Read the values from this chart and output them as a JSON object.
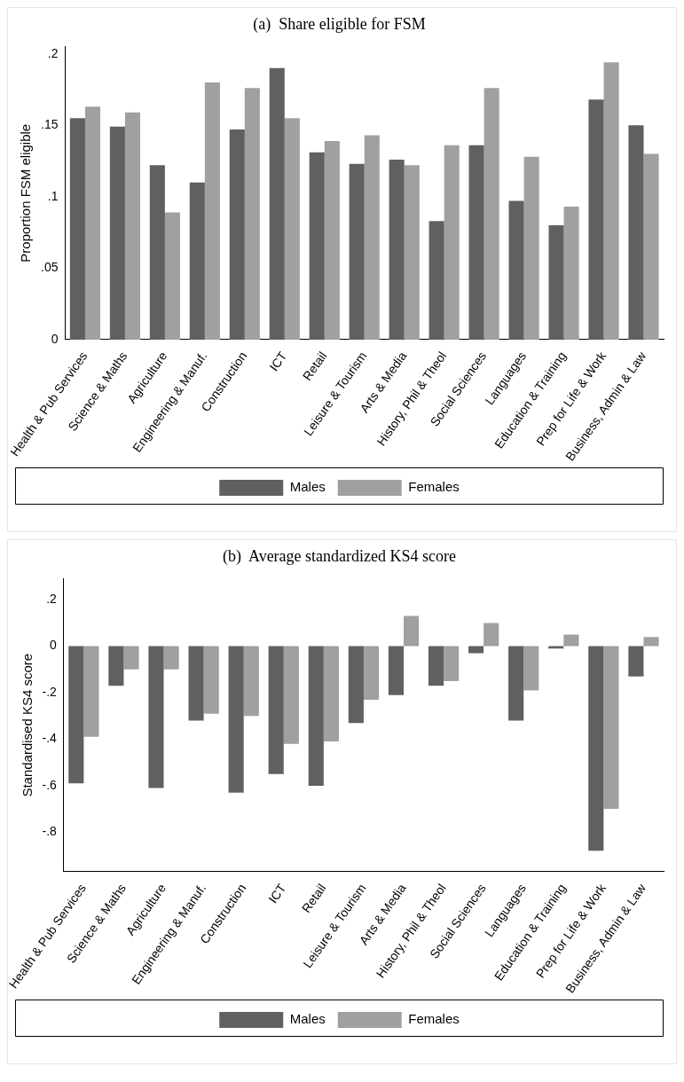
{
  "chart_data": [
    {
      "type": "bar",
      "title": "(a)  Share eligible for FSM",
      "ylabel": "Proportion FSM eligible",
      "categories": [
        "Health & Pub Services",
        "Science & Maths",
        "Agriculture",
        "Engineering & Manuf.",
        "Construction",
        "ICT",
        "Retail",
        "Leisure & Tourism",
        "Arts & Media",
        "History, Phil & Theol",
        "Social Sciences",
        "Languages",
        "Education & Training",
        "Prep for Life & Work",
        "Business, Admin & Law"
      ],
      "series": [
        {
          "name": "Males",
          "color": "#606060",
          "values": [
            0.155,
            0.149,
            0.122,
            0.11,
            0.147,
            0.19,
            0.131,
            0.123,
            0.126,
            0.083,
            0.136,
            0.097,
            0.08,
            0.168,
            0.15
          ]
        },
        {
          "name": "Females",
          "color": "#a0a0a0",
          "values": [
            0.163,
            0.159,
            0.089,
            0.18,
            0.176,
            0.155,
            0.139,
            0.143,
            0.122,
            0.136,
            0.176,
            0.128,
            0.093,
            0.194,
            0.13
          ]
        }
      ],
      "ylim": [
        0,
        0.205
      ],
      "yticks": [
        0,
        {
          "value": 0.05,
          "label": ".05"
        },
        {
          "value": 0.1,
          "label": ".1"
        },
        {
          "value": 0.15,
          "label": ".15"
        },
        {
          "value": 0.2,
          "label": ".2"
        }
      ],
      "grid": false,
      "legend": "bottom"
    },
    {
      "type": "bar",
      "title": "(b)  Average standardized KS4 score",
      "ylabel": "Standardised KS4 score",
      "categories": [
        "Health & Pub Services",
        "Science & Maths",
        "Agriculture",
        "Engineering & Manuf.",
        "Construction",
        "ICT",
        "Retail",
        "Leisure & Tourism",
        "Arts & Media",
        "History, Phil & Theol",
        "Social Sciences",
        "Languages",
        "Education & Training",
        "Prep for Life & Work",
        "Business, Admin & Law"
      ],
      "series": [
        {
          "name": "Males",
          "color": "#606060",
          "values": [
            -0.59,
            -0.17,
            -0.61,
            -0.32,
            -0.63,
            -0.55,
            -0.6,
            -0.33,
            -0.21,
            -0.17,
            -0.03,
            -0.32,
            -0.01,
            -0.88,
            -0.13
          ]
        },
        {
          "name": "Females",
          "color": "#a0a0a0",
          "values": [
            -0.39,
            -0.1,
            -0.1,
            -0.29,
            -0.3,
            -0.42,
            -0.41,
            -0.23,
            0.13,
            -0.15,
            0.1,
            -0.19,
            0.05,
            -0.7,
            0.04
          ]
        }
      ],
      "ylim": [
        -0.97,
        0.29
      ],
      "yticks": [
        {
          "value": -0.8,
          "label": "-.8"
        },
        {
          "value": -0.6,
          "label": "-.6"
        },
        {
          "value": -0.4,
          "label": "-.4"
        },
        {
          "value": -0.2,
          "label": "-.2"
        },
        0,
        {
          "value": 0.2,
          "label": ".2"
        }
      ],
      "grid": false,
      "legend": "bottom"
    }
  ]
}
